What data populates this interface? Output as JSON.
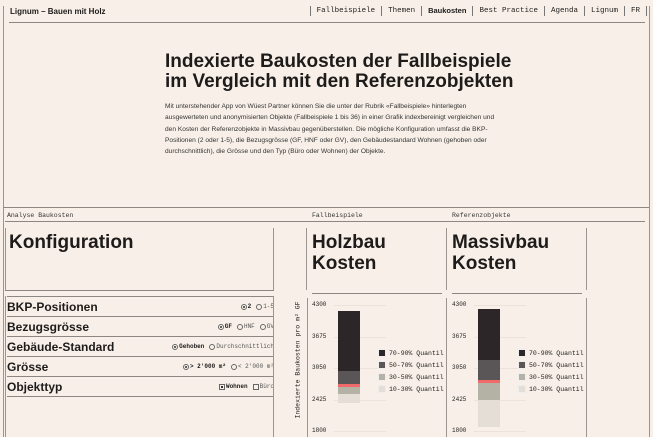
{
  "header": {
    "brand": "Lignum – Bauen mit Holz",
    "nav": [
      "Fallbeispiele",
      "Themen",
      "Baukosten",
      "Best Practice",
      "Agenda",
      "Lignum",
      "FR"
    ],
    "active": "Baukosten"
  },
  "hero": {
    "title": "Indexierte Baukosten der Fallbeispiele im Vergleich mit den Referenzobjekten",
    "intro": "Mit unterstehender App von Wüest Partner können Sie die unter der Rubrik «Fallbeispiele» hinterlegten ausgewerteten und anonymisierten Objekte (Fallbeispiele 1 bis 36) in einer Grafik indexbereinigt vergleichen und den Kosten der Referenzobjekte in Massivbau gegenüberstellen. Die mögliche Konfiguration umfasst die BKP-Positionen (2 oder 1-5), die Bezugsgrösse (GF, HNF oder GV), den Gebäudestandard Wohnen (gehoben oder durchschnittlich), die Grösse und den Typ (Büro oder Wohnen) der Objekte."
  },
  "sections": {
    "analyse": "Analyse Baukosten",
    "fall": "Fallbeispiele",
    "ref": "Referenzobjekte"
  },
  "config": {
    "title": "Konfiguration",
    "rows": [
      {
        "label": "BKP-Positionen",
        "options": [
          "2",
          "1-5"
        ],
        "selected": 0,
        "type": "radio"
      },
      {
        "label": "Bezugsgrösse",
        "options": [
          "GF",
          "HNF",
          "GV"
        ],
        "selected": 0,
        "type": "radio"
      },
      {
        "label": "Gebäude-Standard",
        "options": [
          "Gehoben",
          "Durchschnittlich"
        ],
        "selected": 0,
        "type": "radio"
      },
      {
        "label": "Grösse",
        "options": [
          "> 2'000 m²",
          "< 2'000 m²"
        ],
        "selected": 0,
        "type": "radio"
      },
      {
        "label": "Objekttyp",
        "options": [
          "Wohnen",
          "Büro"
        ],
        "selected": 0,
        "type": "checkbox"
      }
    ]
  },
  "holz": {
    "title1": "Holzbau",
    "title2": "Kosten"
  },
  "massiv": {
    "title1": "Massivbau",
    "title2": "Kosten"
  },
  "chart_data": [
    {
      "type": "bar",
      "title": "Holzbau Kosten",
      "ylabel": "Indexierte Baukosten pro m² GF",
      "yticks": [
        4300,
        3675,
        3050,
        2425,
        1800
      ],
      "ylim": [
        1800,
        4300
      ],
      "quantiles": {
        "q10": 2350,
        "q30": 2540,
        "median": 2720,
        "q70": 3000,
        "q90": 4190
      }
    },
    {
      "type": "bar",
      "title": "Massivbau Kosten",
      "yticks": [
        4300,
        3675,
        3050,
        2425,
        1800
      ],
      "ylim": [
        1800,
        4300
      ],
      "quantiles": {
        "q10": 1880,
        "q30": 2410,
        "median": 2800,
        "q70": 3200,
        "q90": 4230
      }
    }
  ],
  "legend": [
    {
      "label": "70-90% Quantil",
      "color": "#2c2628"
    },
    {
      "label": "50-70% Quantil",
      "color": "#5a5556"
    },
    {
      "label": "30-50% Quantil",
      "color": "#b3b2a4"
    },
    {
      "label": "10-30% Quantil",
      "color": "#e4ded6"
    }
  ],
  "median_color": "#f06a6a"
}
